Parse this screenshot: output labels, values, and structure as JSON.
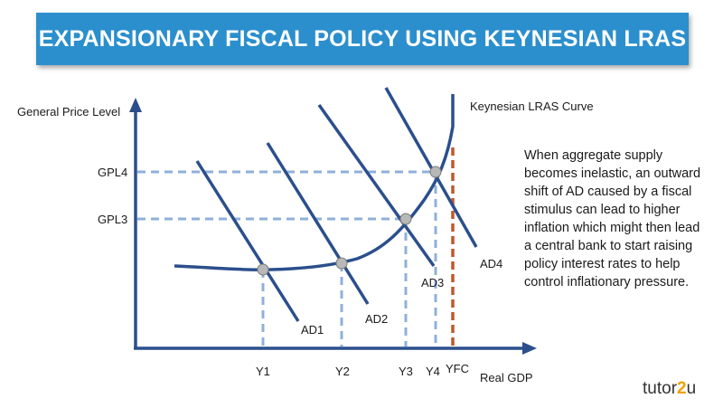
{
  "title": "EXPANSIONARY FISCAL POLICY USING KEYNESIAN LRAS",
  "axes": {
    "y_label": "General Price Level",
    "x_label": "Real GDP"
  },
  "curve_label": "Keynesian LRAS Curve",
  "price_levels": [
    "GPL4",
    "GPL3"
  ],
  "output_levels": [
    "Y1",
    "Y2",
    "Y3",
    "Y4",
    "YFC"
  ],
  "ad_labels": [
    "AD1",
    "AD2",
    "AD3",
    "AD4"
  ],
  "description": "When aggregate supply becomes inelastic, an outward shift of AD caused by a fiscal stimulus can lead to higher inflation which might then lead a central bank to start raising policy interest rates to help control inflationary pressure.",
  "logo": {
    "text": "tutor2u",
    "accent": "2"
  },
  "colors": {
    "banner": "#2b8fcd",
    "curve": "#2b4f8c",
    "dashed": "#8fb0da",
    "yfc": "#c0582b",
    "point": "#b8b8b8"
  }
}
